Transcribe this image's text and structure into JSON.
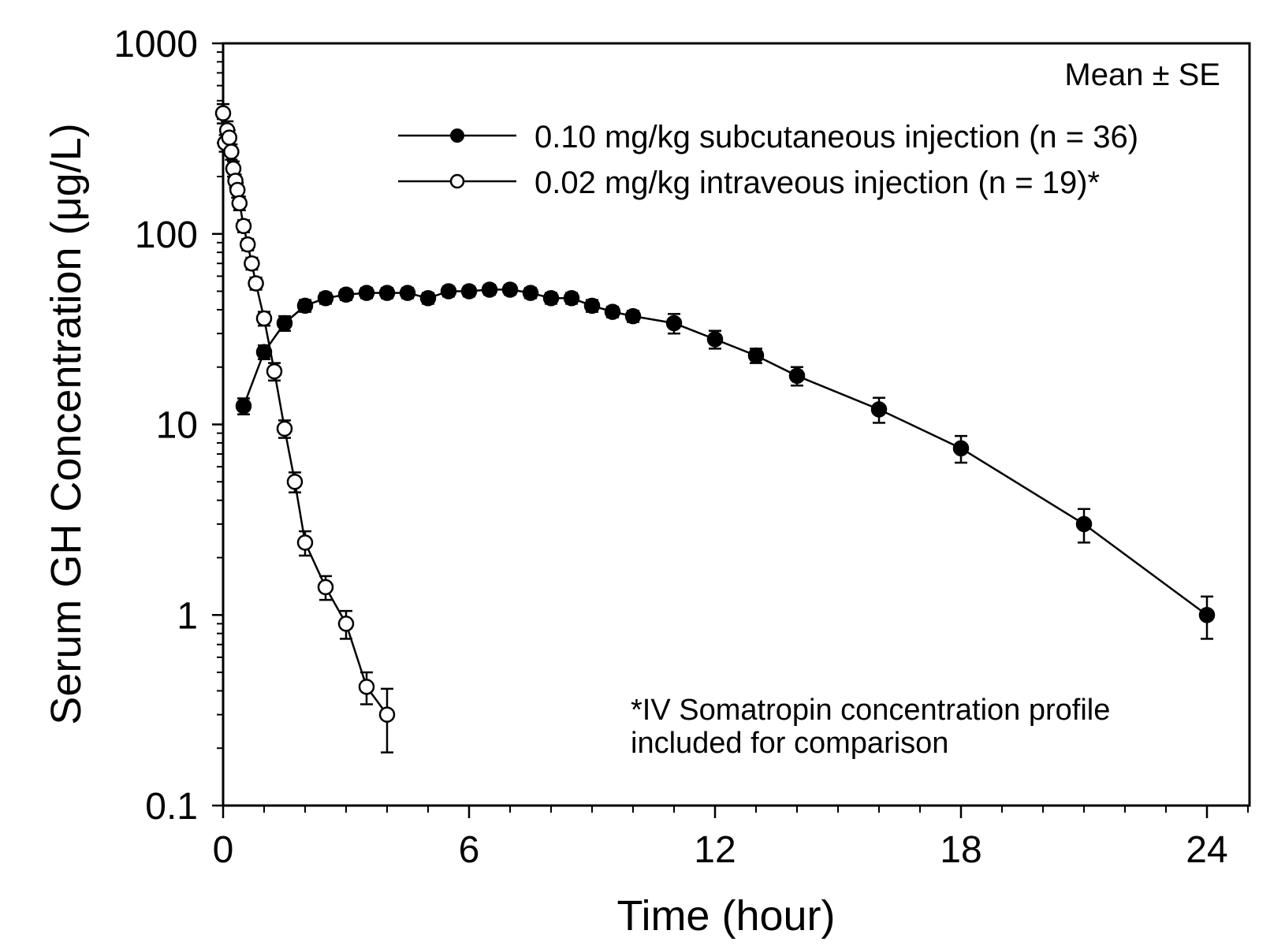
{
  "chart_data": {
    "type": "line",
    "title": "",
    "xlabel": "Time (hour)",
    "ylabel": "Serum GH Concentration (μg/L)",
    "xlim": [
      0,
      25
    ],
    "ylim": [
      0.1,
      1000
    ],
    "yscale": "log",
    "xticks": [
      0,
      6,
      12,
      18,
      24
    ],
    "xtick_labels": [
      "0",
      "6",
      "12",
      "18",
      "24"
    ],
    "yticks": [
      0.1,
      1,
      10,
      100,
      1000
    ],
    "ytick_labels": [
      "0.1",
      "1",
      "10",
      "100",
      "1000"
    ],
    "grid": false,
    "legend_position": "top-right",
    "legend_header": "Mean ± SE",
    "annotation": [
      "*IV Somatropin concentration profile",
      "included for comparison"
    ],
    "series": [
      {
        "name": "0.10 mg/kg subcutaneous injection (n = 36)",
        "marker": "filled-circle",
        "color": "#000000",
        "x": [
          0.5,
          1.0,
          1.5,
          2.0,
          2.5,
          3.0,
          3.5,
          4.0,
          4.5,
          5.0,
          5.5,
          6.0,
          6.5,
          7.0,
          7.5,
          8.0,
          8.5,
          9.0,
          9.5,
          10.0,
          11.0,
          12.0,
          13.0,
          14.0,
          16.0,
          18.0,
          21.0,
          24.0
        ],
        "y": [
          12.5,
          24,
          34,
          42,
          46,
          48,
          49,
          49,
          49,
          46,
          50,
          50,
          51,
          51,
          49,
          46,
          46,
          42,
          39,
          37,
          34,
          28,
          23,
          18,
          12,
          7.5,
          3,
          1.0
        ],
        "error": [
          1.2,
          2,
          3,
          3,
          3,
          3,
          3,
          3,
          3,
          3,
          3,
          3,
          3,
          3,
          3,
          3,
          3,
          3,
          2.5,
          2.5,
          4,
          3,
          2,
          2,
          1.8,
          1.2,
          0.6,
          0.25
        ]
      },
      {
        "name": "0.02 mg/kg intraveous injection (n = 19)*",
        "marker": "open-circle",
        "color": "#000000",
        "x": [
          0.0,
          0.05,
          0.1,
          0.15,
          0.2,
          0.25,
          0.3,
          0.35,
          0.4,
          0.5,
          0.6,
          0.7,
          0.8,
          1.0,
          1.25,
          1.5,
          1.75,
          2.0,
          2.5,
          3.0,
          3.5,
          4.0
        ],
        "y": [
          430,
          300,
          350,
          320,
          270,
          220,
          190,
          170,
          145,
          110,
          88,
          70,
          55,
          36,
          19,
          9.5,
          5,
          2.4,
          1.4,
          0.9,
          0.42,
          0.3
        ],
        "error": [
          50,
          30,
          40,
          30,
          25,
          20,
          15,
          15,
          12,
          8,
          6,
          5,
          4,
          3,
          2,
          1,
          0.6,
          0.35,
          0.2,
          0.15,
          0.08,
          0.11
        ]
      }
    ]
  }
}
